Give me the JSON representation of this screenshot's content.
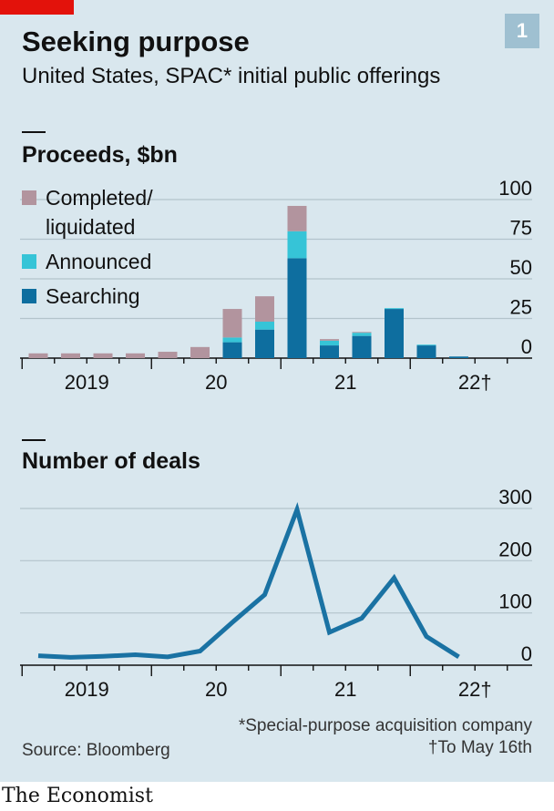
{
  "header": {
    "chart_number": "1",
    "title": "Seeking purpose",
    "subtitle": "United States, SPAC* initial public offerings"
  },
  "colors": {
    "background": "#d9e7ee",
    "completed": "#b2949e",
    "announced": "#36c4d7",
    "searching": "#0e6e9f",
    "line": "#1a72a3",
    "grid": "#b3c4cc",
    "brand_red": "#e3120b"
  },
  "footer": {
    "footnote_1": "*Special-purpose acquisition company",
    "footnote_2": "†To May 16th",
    "source": "Source: Bloomberg",
    "brand": "The Economist"
  },
  "chart_data": [
    {
      "type": "bar",
      "stacked": true,
      "title": "Proceeds, $bn",
      "legend": [
        "Completed/ liquidated",
        "Announced",
        "Searching"
      ],
      "legend_lines": [
        [
          "Completed/",
          "liquidated"
        ],
        [
          "Announced"
        ],
        [
          "Searching"
        ]
      ],
      "legend_placement": "top-left",
      "categories": [
        "2019Q1",
        "2019Q2",
        "2019Q3",
        "2019Q4",
        "2020Q1",
        "2020Q2",
        "2020Q3",
        "2020Q4",
        "2021Q1",
        "2021Q2",
        "2021Q3",
        "2021Q4",
        "2022Q1",
        "2022Q2†"
      ],
      "series": [
        {
          "name": "Searching",
          "values": [
            0,
            0,
            0,
            0,
            0,
            0,
            10,
            18,
            63,
            8,
            14,
            31,
            8,
            1
          ]
        },
        {
          "name": "Announced",
          "values": [
            0,
            0,
            0,
            0,
            0,
            0,
            3,
            5,
            17,
            3,
            2,
            0.5,
            0.5,
            0
          ]
        },
        {
          "name": "Completed/ liquidated",
          "values": [
            3,
            3,
            3,
            3,
            4,
            7,
            18,
            16,
            16,
            1,
            0.5,
            0,
            0,
            0
          ]
        }
      ],
      "yticks": [
        0,
        25,
        50,
        75,
        100
      ],
      "ylim": [
        0,
        100
      ],
      "xtick_labels": [
        "2019",
        "20",
        "21",
        "22†"
      ],
      "grid": true
    },
    {
      "type": "line",
      "title": "Number of deals",
      "categories": [
        "2019Q1",
        "2019Q2",
        "2019Q3",
        "2019Q4",
        "2020Q1",
        "2020Q2",
        "2020Q3",
        "2020Q4",
        "2021Q1",
        "2021Q2",
        "2021Q3",
        "2021Q4",
        "2022Q1",
        "2022Q2†"
      ],
      "series": [
        {
          "values": [
            18,
            15,
            17,
            20,
            16,
            27,
            82,
            135,
            298,
            63,
            90,
            167,
            55,
            16
          ]
        }
      ],
      "yticks": [
        0,
        100,
        200,
        300
      ],
      "ylim": [
        0,
        300
      ],
      "xtick_labels": [
        "2019",
        "20",
        "21",
        "22†"
      ],
      "grid": true
    }
  ]
}
